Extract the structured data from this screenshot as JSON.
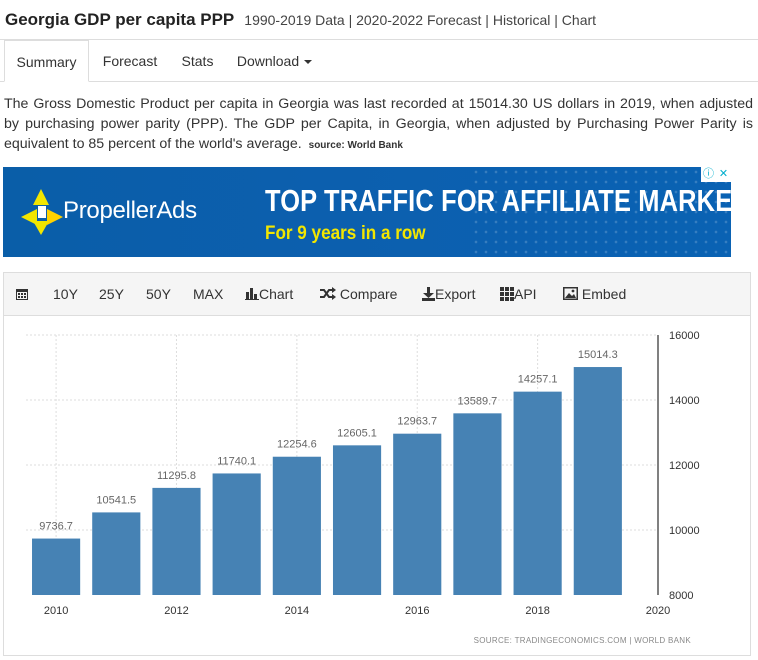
{
  "header": {
    "title": "Georgia GDP per capita PPP",
    "subtitle": "1990-2019 Data | 2020-2022 Forecast | Historical | Chart"
  },
  "tabs": [
    {
      "label": "Summary",
      "active": true
    },
    {
      "label": "Forecast"
    },
    {
      "label": "Stats"
    },
    {
      "label": "Download"
    }
  ],
  "description": {
    "text": "The Gross Domestic Product per capita in Georgia was last recorded at 15014.30 US dollars in 2019, when adjusted by purchasing power parity (PPP). The GDP per Capita, in Georgia, when adjusted by Purchasing Power Parity is equivalent to 85 percent of the world's average.",
    "source": "source: World Bank"
  },
  "ad": {
    "brand": "PropellerAds",
    "headline": "TOP TRAFFIC FOR AFFILIATE MARKETING",
    "sub": "For 9 years in a row",
    "colors": {
      "background": "#0b5faf",
      "accent": "#f2e600"
    }
  },
  "toolbar": {
    "calendar_icon": "calendar-icon",
    "ranges": [
      "10Y",
      "25Y",
      "50Y",
      "MAX"
    ],
    "chart": "Chart",
    "compare": "Compare",
    "export": "Export",
    "api": "API",
    "embed": "Embed"
  },
  "chart_data": {
    "type": "bar",
    "x": [
      2010,
      2011,
      2012,
      2013,
      2014,
      2015,
      2016,
      2017,
      2018,
      2019
    ],
    "values": [
      9736.7,
      10541.5,
      11295.8,
      11740.1,
      12254.6,
      12605.1,
      12963.7,
      13589.7,
      14257.1,
      15014.3
    ],
    "labels": [
      "9736.7",
      "10541.5",
      "11295.8",
      "11740.1",
      "12254.6",
      "12605.1",
      "12963.7",
      "13589.7",
      "14257.1",
      "15014.3"
    ],
    "x_ticks": [
      "2010",
      "2012",
      "2014",
      "2016",
      "2018",
      "2020"
    ],
    "y_ticks": [
      "8000",
      "10000",
      "12000",
      "14000",
      "16000"
    ],
    "ylim": [
      8000,
      16000
    ],
    "xlim": [
      2009.5,
      2020
    ],
    "grid": true,
    "y_axis_side": "right",
    "bar_color": "#4682b4",
    "source": "SOURCE: TRADINGECONOMICS.COM  |  WORLD BANK"
  }
}
